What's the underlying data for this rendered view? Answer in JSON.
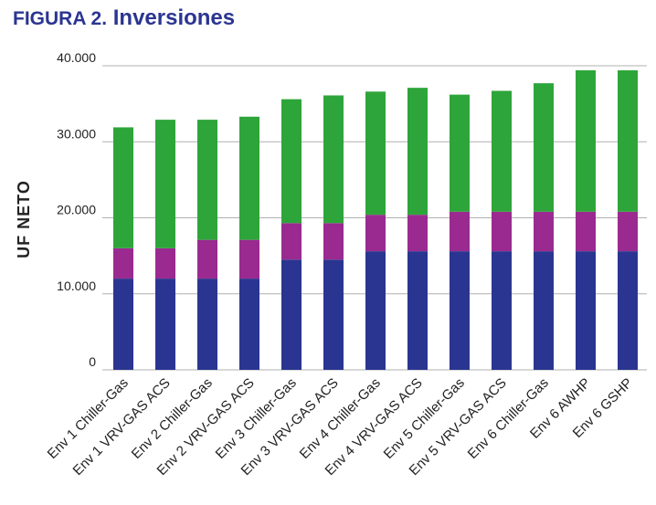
{
  "figure": {
    "title_lead": "FIGURA 2.",
    "title_main": "Inversiones"
  },
  "colors": {
    "title": "#2b3591",
    "grid": "#b0b0b0",
    "segments": [
      "#2a3591",
      "#9a2a8f",
      "#2ea53a"
    ]
  },
  "chart_data": {
    "type": "bar",
    "stacked": true,
    "title": "FIGURA 2. Inversiones",
    "xlabel": "",
    "ylabel": "UF NETO",
    "ylim": [
      0,
      40000
    ],
    "yticks": [
      0,
      10000,
      20000,
      30000,
      40000
    ],
    "ytick_labels": [
      "0",
      "10.000",
      "20.000",
      "30.000",
      "40.000"
    ],
    "grid": "horizontal",
    "legend": "none",
    "categories": [
      "Env 1 Chiller-Gas",
      "Env 1 VRV-GAS ACS",
      "Env 2 Chiller-Gas",
      "Env 2 VRV-GAS ACS",
      "Env 3 Chiller-Gas",
      "Env 3 VRV-GAS ACS",
      "Env 4 Chiller-Gas",
      "Env 4 VRV-GAS ACS",
      "Env 5 Chiller-Gas",
      "Env 5 VRV-GAS ACS",
      "Env 6 Chiller-Gas",
      "Env 6 AWHP",
      "Env 6 GSHP"
    ],
    "series": [
      {
        "color": "#2a3591",
        "values": [
          12000,
          12000,
          12000,
          12000,
          14500,
          14500,
          15600,
          15600,
          15600,
          15600,
          15600,
          15600,
          15600
        ]
      },
      {
        "color": "#9a2a8f",
        "values": [
          4000,
          4000,
          5100,
          5100,
          4800,
          4800,
          4800,
          4800,
          5200,
          5200,
          5200,
          5200,
          5200
        ]
      },
      {
        "color": "#2ea53a",
        "values": [
          15900,
          16900,
          15800,
          16200,
          16300,
          16800,
          16200,
          16700,
          15400,
          15900,
          16900,
          18600,
          18600
        ]
      }
    ]
  }
}
